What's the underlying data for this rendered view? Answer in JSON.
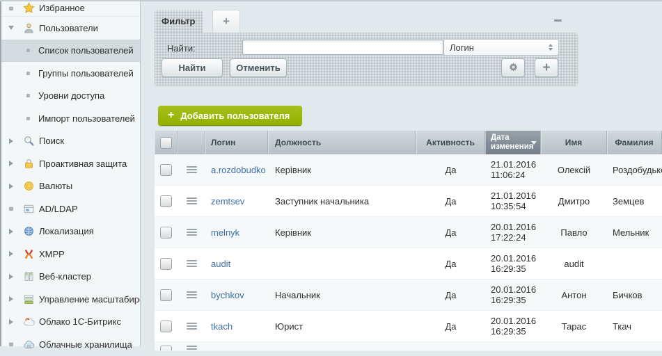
{
  "sidebar": {
    "items": [
      {
        "name": "favorites",
        "label": "Избранное",
        "icon": "star",
        "marker": "dot",
        "level": 1
      },
      {
        "name": "users",
        "label": "Пользователи",
        "icon": "user",
        "marker": "expanded",
        "level": 1
      },
      {
        "name": "user-list",
        "label": "Список пользователей",
        "level": 2,
        "selected": true
      },
      {
        "name": "user-groups",
        "label": "Группы пользователей",
        "level": 2
      },
      {
        "name": "access-levels",
        "label": "Уровни доступа",
        "level": 2
      },
      {
        "name": "user-import",
        "label": "Импорт пользователей",
        "level": 2
      },
      {
        "name": "search",
        "label": "Поиск",
        "icon": "search",
        "marker": "collapsed",
        "level": 1
      },
      {
        "name": "proactive-protection",
        "label": "Проактивная защита",
        "icon": "lock",
        "marker": "collapsed",
        "level": 1
      },
      {
        "name": "currencies",
        "label": "Валюты",
        "icon": "coin",
        "marker": "collapsed",
        "level": 1
      },
      {
        "name": "ad-ldap",
        "label": "AD/LDAP",
        "icon": "window",
        "marker": "dot",
        "level": 1
      },
      {
        "name": "localization",
        "label": "Локализация",
        "icon": "globe",
        "marker": "collapsed",
        "level": 1
      },
      {
        "name": "xmpp",
        "label": "XMPP",
        "icon": "xmpp",
        "marker": "collapsed",
        "level": 1
      },
      {
        "name": "web-cluster",
        "label": "Веб-кластер",
        "icon": "cluster",
        "marker": "collapsed",
        "level": 1
      },
      {
        "name": "scaling",
        "label": "Управление масштабированием",
        "icon": "scaling",
        "marker": "collapsed",
        "level": 1
      },
      {
        "name": "bitrix-cloud",
        "label": "Облако 1С-Битрикс",
        "icon": "cloud-bitrix",
        "marker": "collapsed",
        "level": 1
      },
      {
        "name": "cloud-storage",
        "label": "Облачные хранилища",
        "icon": "cloud-storage",
        "marker": "dot",
        "level": 1
      }
    ]
  },
  "filter": {
    "tab_label": "Фильтр",
    "add_tab_label": "+",
    "find_label": "Найти:",
    "search_value": "",
    "field_select_value": "Логин",
    "find_button": "Найти",
    "cancel_button": "Отменить",
    "add_field_glyph": "+"
  },
  "toolbar": {
    "add_user_plus": "+",
    "add_user_button": "Добавить пользователя"
  },
  "table": {
    "columns": [
      {
        "key": "login",
        "label": "Логин"
      },
      {
        "key": "position",
        "label": "Должность"
      },
      {
        "key": "active",
        "label": "Активность"
      },
      {
        "key": "date",
        "label": "Дата изменения",
        "sorted": "desc"
      },
      {
        "key": "name",
        "label": "Имя"
      },
      {
        "key": "lastname",
        "label": "Фамилия"
      }
    ],
    "rows": [
      {
        "login": "a.rozdobudko",
        "position": "Керівник",
        "active": "Да",
        "date": "21.01.2016",
        "time": "11:06:24",
        "name": "Олексій",
        "lastname": "Роздобудько"
      },
      {
        "login": "zemtsev",
        "position": "Заступник начальника",
        "active": "Да",
        "date": "21.01.2016",
        "time": "10:35:54",
        "name": "Дмитро",
        "lastname": "Земцев"
      },
      {
        "login": "melnyk",
        "position": "Керівник",
        "active": "Да",
        "date": "20.01.2016",
        "time": "17:22:24",
        "name": "Павло",
        "lastname": "Мельник"
      },
      {
        "login": "audit",
        "position": "",
        "active": "Да",
        "date": "20.01.2016",
        "time": "16:29:35",
        "name": "audit",
        "lastname": ""
      },
      {
        "login": "bychkov",
        "position": "Начальник",
        "active": "Да",
        "date": "20.01.2016",
        "time": "16:29:35",
        "name": "Антон",
        "lastname": "Бичков"
      },
      {
        "login": "tkach",
        "position": "Юрист",
        "active": "Да",
        "date": "20.01.2016",
        "time": "16:29:35",
        "name": "Тарас",
        "lastname": "Ткач"
      }
    ]
  },
  "colors": {
    "page_bg": "#e1e9ec",
    "sidebar_bg": "#f4f7f8",
    "sidebar_selected": "#d4dce0",
    "filter_panel": "#cdd5d9",
    "accent_green": "#9db712",
    "header_sorted": "#79838d",
    "link_blue": "#3d6fa5"
  }
}
